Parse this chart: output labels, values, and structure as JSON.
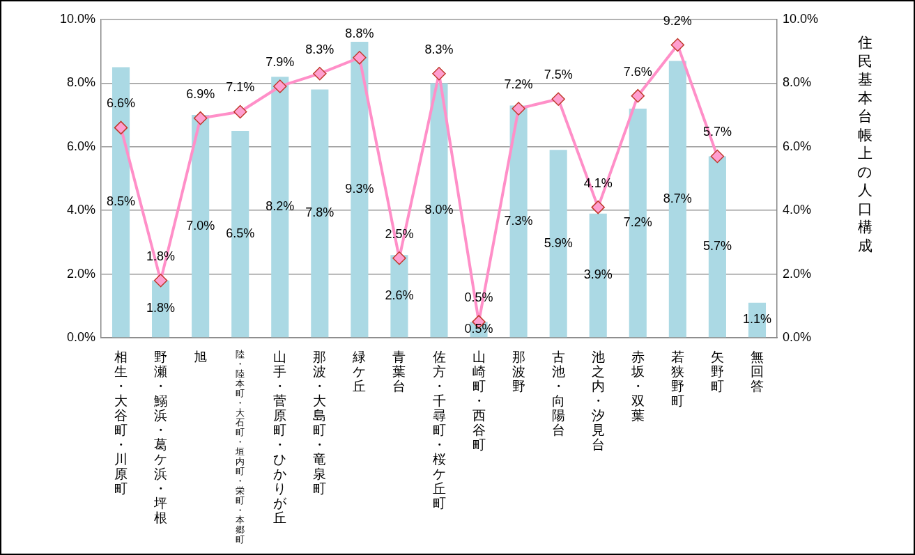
{
  "chart_data": {
    "type": "bar",
    "y2label": "住民基本台帳上の人口構成",
    "categories": [
      "相生・大谷町・川原町",
      "野瀬・鰯浜・葛ケ浜・坪根",
      "旭",
      "陸・陸本町・大石町・垣内町・栄町・本郷町",
      "山手・菅原町・ひかりが丘",
      "那波・大島町・竜泉町",
      "緑ケ丘",
      "青葉台",
      "佐方・千尋町・桜ケ丘町",
      "山崎町・西谷町",
      "那波野",
      "古池・向陽台",
      "池之内・汐見台",
      "赤坂・双葉",
      "若狭野町",
      "矢野町",
      "無回答"
    ],
    "series": [
      {
        "color": "#abd9e4",
        "values": [
          8.5,
          1.8,
          7.0,
          6.5,
          8.2,
          7.8,
          9.3,
          2.6,
          8.0,
          0.5,
          7.3,
          5.9,
          3.9,
          7.2,
          8.7,
          5.7,
          1.1
        ],
        "value_labels": [
          "8.5%",
          "1.8%",
          "7.0%",
          "6.5%",
          "8.2%",
          "7.8%",
          "9.3%",
          "2.6%",
          "8.0%",
          "0.5%",
          "7.3%",
          "5.9%",
          "3.9%",
          "7.2%",
          "8.7%",
          "5.7%",
          "1.1%"
        ]
      },
      {
        "type": "line",
        "axis": "y2",
        "color": "#ff8fc8",
        "values": [
          6.6,
          1.8,
          6.9,
          7.1,
          7.9,
          8.3,
          8.8,
          2.5,
          8.3,
          0.5,
          7.2,
          7.5,
          4.1,
          7.6,
          9.2,
          5.7,
          null
        ],
        "value_labels": [
          "6.6%",
          "1.8%",
          "6.9%",
          "7.1%",
          "7.9%",
          "8.3%",
          "8.8%",
          "2.5%",
          "8.3%",
          "0.5%",
          "7.2%",
          "7.5%",
          "4.1%",
          "7.6%",
          "9.2%",
          "5.7%",
          null
        ]
      }
    ],
    "ylim": [
      0,
      10
    ],
    "yticks": [
      {
        "value": 0,
        "label": "0.0%"
      },
      {
        "value": 2,
        "label": "2.0%"
      },
      {
        "value": 4,
        "label": "4.0%"
      },
      {
        "value": 6,
        "label": "6.0%"
      },
      {
        "value": 8,
        "label": "8.0%"
      },
      {
        "value": 10,
        "label": "10.0%"
      }
    ],
    "y2lim": [
      0,
      10
    ],
    "y2ticks": [
      {
        "value": 0,
        "label": "0.0%"
      },
      {
        "value": 2,
        "label": "2.0%"
      },
      {
        "value": 4,
        "label": "4.0%"
      },
      {
        "value": 6,
        "label": "6.0%"
      },
      {
        "value": 8,
        "label": "8.0%"
      },
      {
        "value": 10,
        "label": "10.0%"
      }
    ],
    "grid": "y",
    "marker": "diamond",
    "line_style": "solid",
    "legend": false
  }
}
